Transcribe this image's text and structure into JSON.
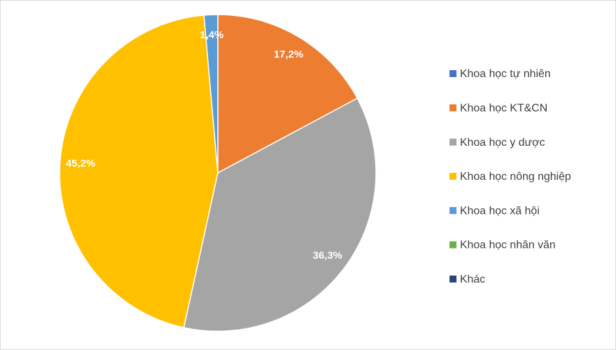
{
  "chart_data": {
    "type": "pie",
    "categories": [
      "Khoa học tự nhiên",
      "Khoa học KT&CN",
      "Khoa học y dược",
      "Khoa học nông nghiệp",
      "Khoa học xã hội",
      "Khoa học nhân văn",
      "Khác"
    ],
    "values": [
      0,
      17.2,
      36.3,
      45.2,
      1.4,
      0,
      0
    ],
    "value_labels": [
      null,
      "17,2%",
      "36,3%",
      "45,2%",
      "1,4%",
      null,
      null
    ],
    "colors": [
      "#4472c4",
      "#ed7d31",
      "#a5a5a5",
      "#ffc000",
      "#5b9bd5",
      "#70ad47",
      "#264478"
    ],
    "legend": "right"
  }
}
